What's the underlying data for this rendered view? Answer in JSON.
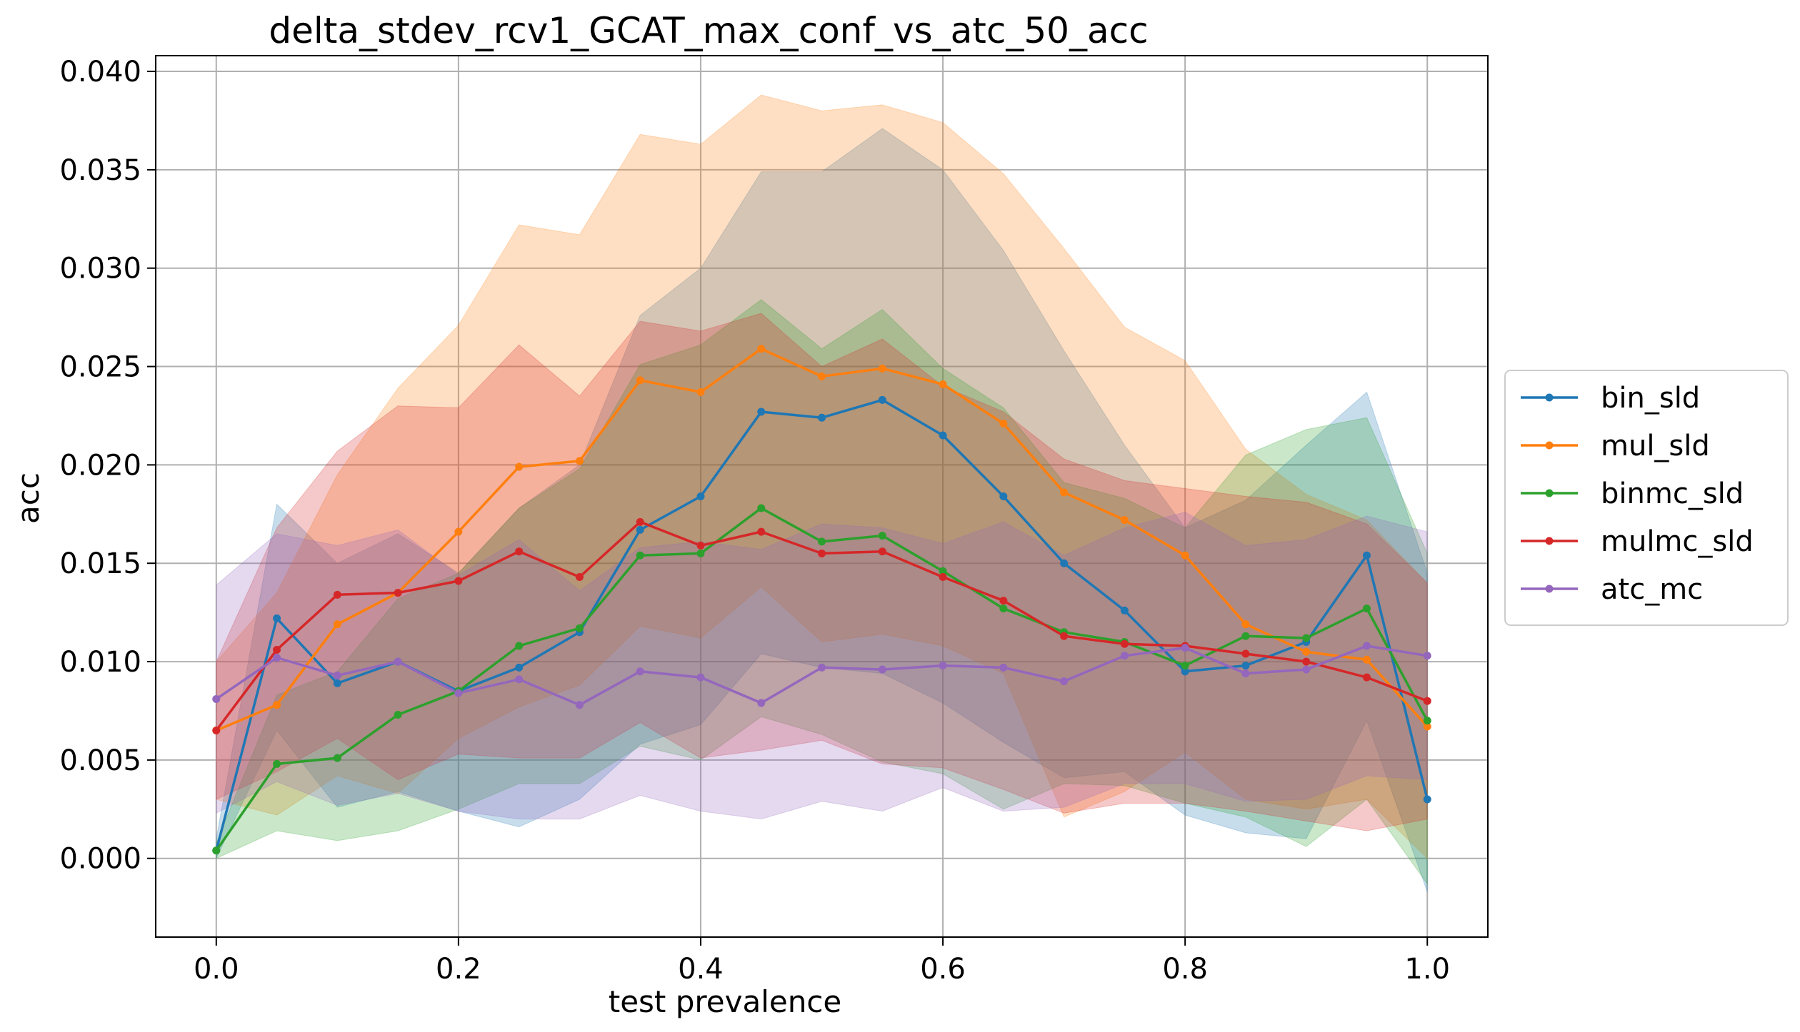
{
  "chart_data": {
    "type": "line",
    "title": "delta_stdev_rcv1_GCAT_max_conf_vs_atc_50_acc",
    "xlabel": "test prevalence",
    "ylabel": "acc",
    "xlim": [
      -0.05,
      1.05
    ],
    "ylim": [
      -0.004,
      0.0408
    ],
    "grid": true,
    "legend": "outside-right",
    "xticks": [
      "0.0",
      "0.2",
      "0.4",
      "0.6",
      "0.8",
      "1.0"
    ],
    "yticks": [
      "0.000",
      "0.005",
      "0.010",
      "0.015",
      "0.020",
      "0.025",
      "0.030",
      "0.035",
      "0.040"
    ],
    "x": [
      0.0,
      0.05,
      0.1,
      0.15,
      0.2,
      0.25,
      0.3,
      0.35,
      0.4,
      0.45,
      0.5,
      0.55,
      0.6,
      0.65,
      0.7,
      0.75,
      0.8,
      0.85,
      0.9,
      0.95,
      1.0
    ],
    "series": [
      {
        "name": "bin_sld",
        "color": "#1f77b4",
        "values": [
          0.0004,
          0.0122,
          0.0089,
          0.01,
          0.0085,
          0.0097,
          0.0115,
          0.0167,
          0.0184,
          0.0227,
          0.0224,
          0.0233,
          0.0215,
          0.0184,
          0.015,
          0.0126,
          0.0095,
          0.0098,
          0.011,
          0.0154,
          0.003
        ],
        "upper": [
          0.001,
          0.018,
          0.015,
          0.0165,
          0.0145,
          0.0178,
          0.02,
          0.0276,
          0.03,
          0.0349,
          0.0349,
          0.0371,
          0.035,
          0.0309,
          0.0258,
          0.021,
          0.0168,
          0.0182,
          0.021,
          0.0237,
          0.0145
        ],
        "lower": [
          0.0,
          0.0065,
          0.0026,
          0.0034,
          0.0024,
          0.0016,
          0.003,
          0.0058,
          0.0068,
          0.0104,
          0.0097,
          0.0094,
          0.0079,
          0.0059,
          0.0041,
          0.0044,
          0.0022,
          0.0013,
          0.001,
          0.007,
          -0.0017
        ]
      },
      {
        "name": "mul_sld",
        "color": "#ff7f0e",
        "values": [
          0.0065,
          0.0078,
          0.0119,
          0.0135,
          0.0166,
          0.0199,
          0.0202,
          0.0243,
          0.0237,
          0.0259,
          0.0245,
          0.0249,
          0.0241,
          0.0221,
          0.0186,
          0.0172,
          0.0154,
          0.0119,
          0.0105,
          0.0101,
          0.0067
        ],
        "upper": [
          0.01,
          0.0135,
          0.0195,
          0.0239,
          0.0271,
          0.0322,
          0.0317,
          0.0368,
          0.0363,
          0.0388,
          0.038,
          0.0383,
          0.0374,
          0.0348,
          0.031,
          0.027,
          0.0253,
          0.0208,
          0.0185,
          0.0172,
          0.014
        ],
        "lower": [
          0.003,
          0.0022,
          0.0042,
          0.0033,
          0.0061,
          0.0077,
          0.0088,
          0.0118,
          0.0112,
          0.0138,
          0.011,
          0.0114,
          0.0108,
          0.0094,
          0.0021,
          0.0034,
          0.0054,
          0.003,
          0.0025,
          0.003,
          0.0
        ]
      },
      {
        "name": "binmc_sld",
        "color": "#2ca02c",
        "values": [
          0.0004,
          0.0048,
          0.0051,
          0.0073,
          0.0085,
          0.0108,
          0.0117,
          0.0154,
          0.0155,
          0.0178,
          0.0161,
          0.0164,
          0.0146,
          0.0127,
          0.0115,
          0.011,
          0.0098,
          0.0113,
          0.0112,
          0.0127,
          0.007
        ],
        "upper": [
          0.0008,
          0.0083,
          0.0095,
          0.0132,
          0.0145,
          0.0178,
          0.0198,
          0.0251,
          0.0261,
          0.0284,
          0.0259,
          0.0279,
          0.0249,
          0.0229,
          0.0191,
          0.0183,
          0.0168,
          0.0205,
          0.0218,
          0.0224,
          0.0155
        ],
        "lower": [
          0.0,
          0.0014,
          0.0009,
          0.0014,
          0.0025,
          0.0038,
          0.0038,
          0.0057,
          0.005,
          0.0072,
          0.0063,
          0.0049,
          0.0043,
          0.0025,
          0.0038,
          0.0037,
          0.0028,
          0.0021,
          0.0006,
          0.003,
          -0.0013
        ]
      },
      {
        "name": "mulmc_sld",
        "color": "#d62728",
        "values": [
          0.0065,
          0.0106,
          0.0134,
          0.0135,
          0.0141,
          0.0156,
          0.0143,
          0.0171,
          0.0159,
          0.0166,
          0.0155,
          0.0156,
          0.0143,
          0.0131,
          0.0113,
          0.0109,
          0.0108,
          0.0104,
          0.01,
          0.0092,
          0.008
        ],
        "upper": [
          0.01,
          0.0168,
          0.0207,
          0.023,
          0.0229,
          0.0261,
          0.0235,
          0.0273,
          0.0268,
          0.0277,
          0.025,
          0.0264,
          0.024,
          0.0227,
          0.0203,
          0.0192,
          0.0188,
          0.0184,
          0.0181,
          0.017,
          0.014
        ],
        "lower": [
          0.003,
          0.0044,
          0.0061,
          0.004,
          0.0053,
          0.0051,
          0.0051,
          0.0069,
          0.0051,
          0.0055,
          0.006,
          0.0048,
          0.0046,
          0.0035,
          0.0023,
          0.0028,
          0.0028,
          0.0024,
          0.0019,
          0.0014,
          0.002
        ]
      },
      {
        "name": "atc_mc",
        "color": "#9467bd",
        "values": [
          0.0081,
          0.0102,
          0.0093,
          0.01,
          0.0084,
          0.0091,
          0.0078,
          0.0095,
          0.0092,
          0.0079,
          0.0097,
          0.0096,
          0.0098,
          0.0097,
          0.009,
          0.0103,
          0.0107,
          0.0094,
          0.0096,
          0.0108,
          0.0103
        ],
        "upper": [
          0.0139,
          0.0165,
          0.0159,
          0.0167,
          0.0144,
          0.0162,
          0.0136,
          0.0158,
          0.0161,
          0.0157,
          0.017,
          0.0168,
          0.016,
          0.0171,
          0.0154,
          0.0168,
          0.0176,
          0.0159,
          0.0162,
          0.0174,
          0.0166
        ],
        "lower": [
          0.0023,
          0.0039,
          0.0027,
          0.0033,
          0.0024,
          0.002,
          0.002,
          0.0032,
          0.0024,
          0.002,
          0.0029,
          0.0024,
          0.0036,
          0.0024,
          0.0026,
          0.0038,
          0.0038,
          0.0029,
          0.003,
          0.0042,
          0.004
        ]
      }
    ]
  }
}
